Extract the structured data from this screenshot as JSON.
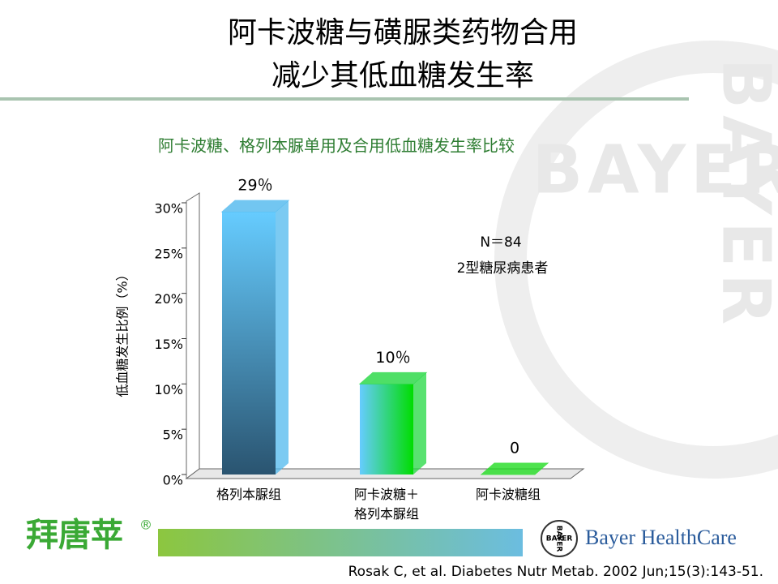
{
  "header": {
    "title_lines": [
      "阿卡波糖与磺脲类药物合用",
      "减少其低血糖发生率"
    ]
  },
  "watermark": "BAYER",
  "chart_data": {
    "type": "bar",
    "title": "阿卡波糖、格列本脲单用及合用低血糖发生率比较",
    "y_label": "低血糖发生比例（%）",
    "categories": [
      "格列本脲组",
      "阿卡波糖＋\n格列本脲组",
      "阿卡波糖组"
    ],
    "values": [
      29,
      10,
      0
    ],
    "value_labels": [
      "29％",
      "10％",
      "0"
    ],
    "colors": [
      "#4fb8ee",
      "#22d840",
      "#22dd22"
    ],
    "ylim": [
      0,
      30
    ],
    "yticks": [
      {
        "value": 0,
        "label": "0%"
      },
      {
        "value": 5,
        "label": "5%"
      },
      {
        "value": 10,
        "label": "10%"
      },
      {
        "value": 15,
        "label": "15%"
      },
      {
        "value": 20,
        "label": "20%"
      },
      {
        "value": 25,
        "label": "25%"
      },
      {
        "value": 30,
        "label": "30%"
      }
    ],
    "annotations": [
      "N＝84",
      "2型糖尿病患者"
    ]
  },
  "footer": {
    "brand": "拜唐苹",
    "brand_mark": "®",
    "logo": "BAYER",
    "company": "Bayer HealthCare",
    "citation": "Rosak C, et al. Diabetes Nutr Metab. 2002 Jun;15(3):143-51."
  }
}
